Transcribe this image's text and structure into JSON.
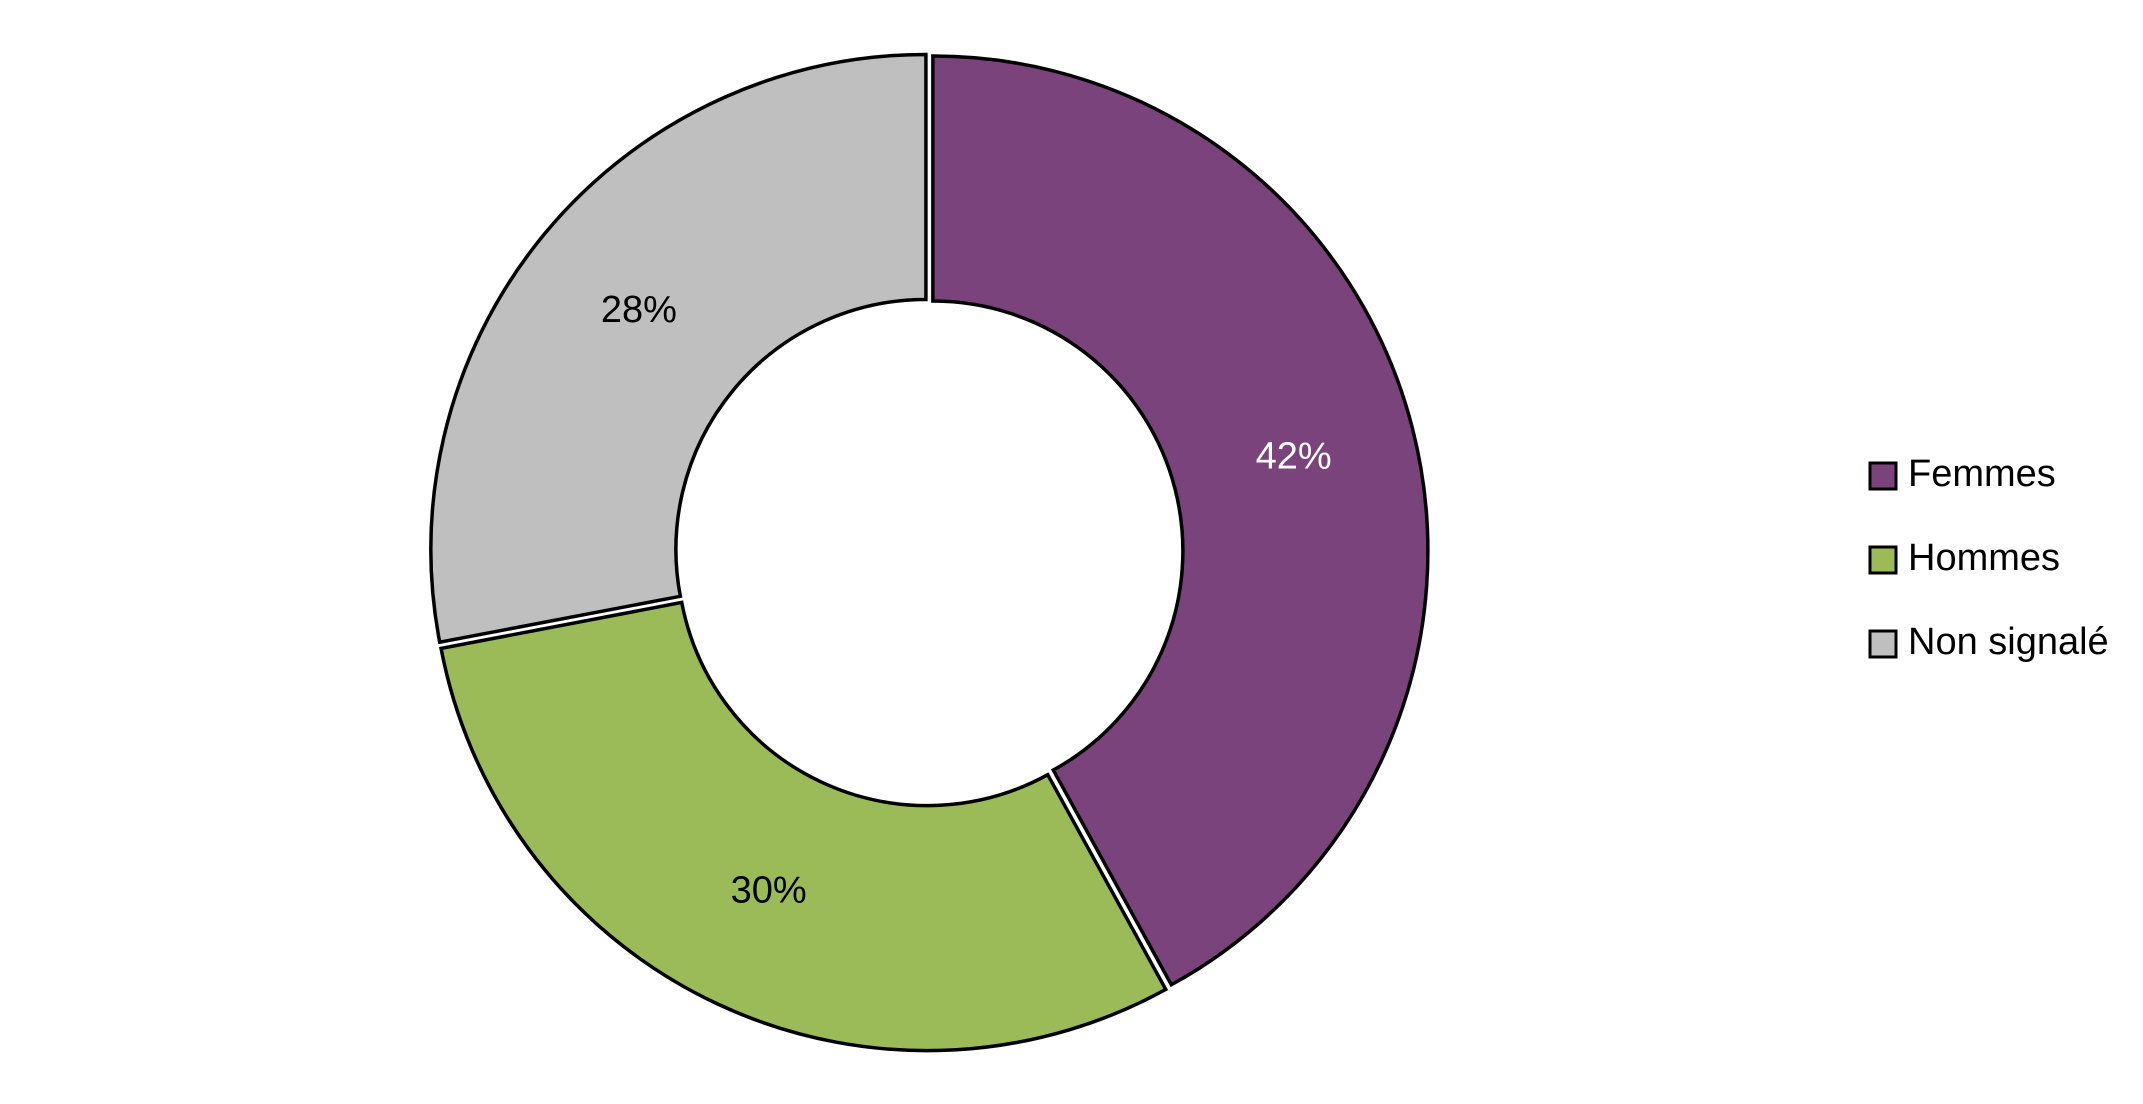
{
  "chart_data": {
    "type": "donut",
    "categories": [
      "Femmes",
      "Hommes",
      "Non signalé"
    ],
    "values": [
      42,
      30,
      28
    ],
    "value_labels": [
      "42%",
      "30%",
      "28%"
    ],
    "colors": [
      "#7b437b",
      "#9bbb59",
      "#bfbfbf"
    ],
    "label_colors": [
      "#ffffff",
      "#000000",
      "#000000"
    ],
    "legend": "right"
  }
}
